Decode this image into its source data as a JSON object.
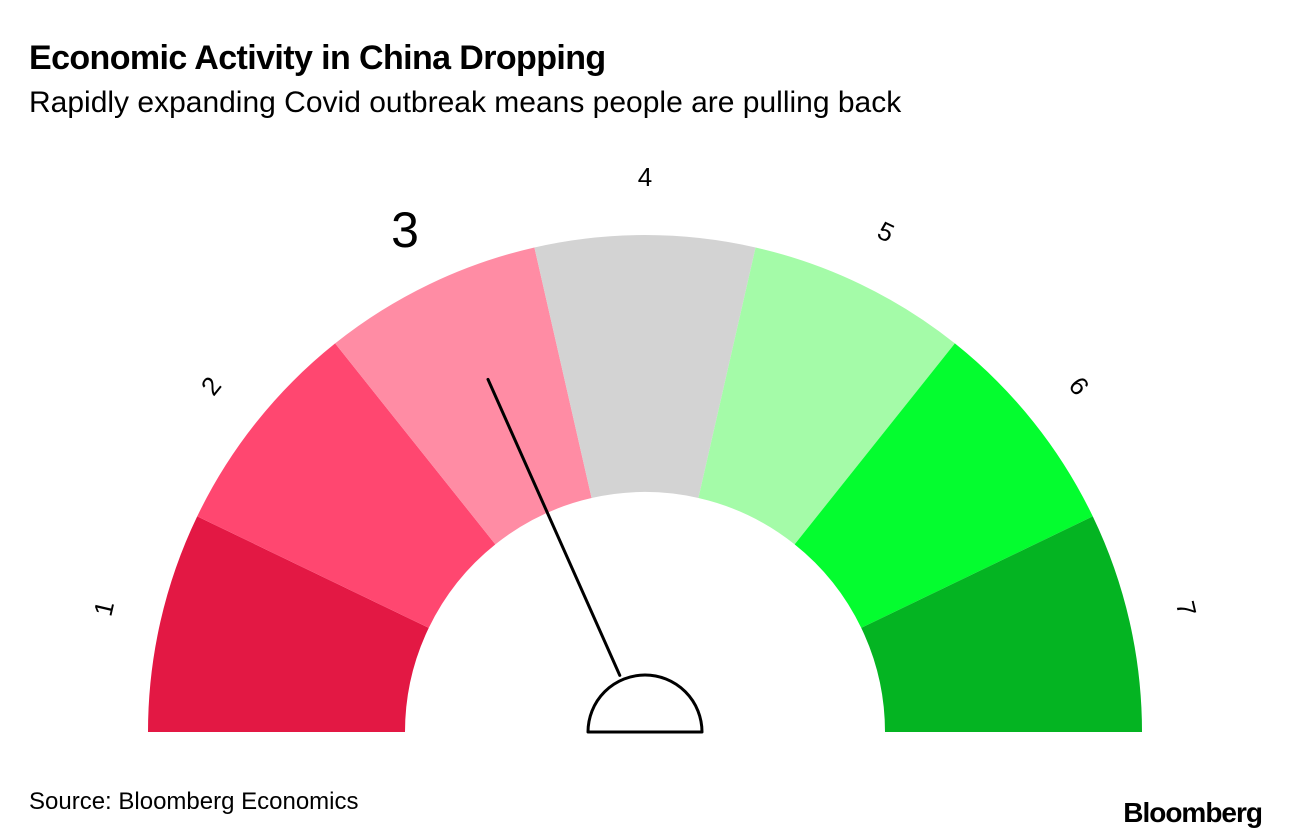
{
  "title": "Economic Activity in China Dropping",
  "subtitle": "Rapidly expanding Covid outbreak means people are pulling back",
  "source": "Source: Bloomberg Economics",
  "brand": "Bloomberg",
  "chart_data": {
    "type": "gauge",
    "min": 1,
    "max": 7,
    "value": 3,
    "segments": [
      {
        "label": "1",
        "color": "#e31844"
      },
      {
        "label": "2",
        "color": "#ff4770"
      },
      {
        "label": "3",
        "color": "#ff8ca4"
      },
      {
        "label": "4",
        "color": "#d3d3d3"
      },
      {
        "label": "5",
        "color": "#a4fba8"
      },
      {
        "label": "6",
        "color": "#04fd2f"
      },
      {
        "label": "7",
        "color": "#04b422"
      }
    ],
    "highlighted_label": "3"
  }
}
